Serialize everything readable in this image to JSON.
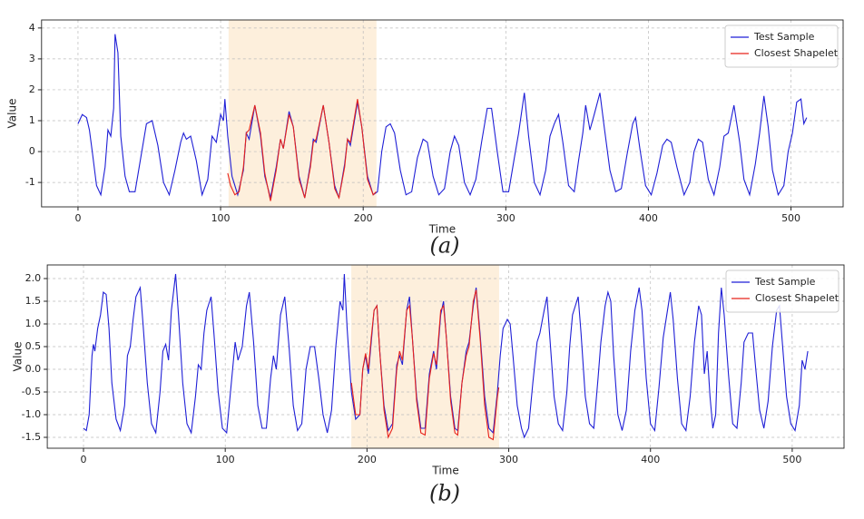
{
  "chart_data": [
    {
      "type": "line",
      "caption": "(a)",
      "xlabel": "Time",
      "ylabel": "Value",
      "grid": true,
      "legend": "upper right",
      "xlim": [
        -25.55,
        536.55
      ],
      "ylim": [
        -1.79,
        4.26
      ],
      "xticks": [
        0,
        100,
        200,
        300,
        400,
        500
      ],
      "yticks": [
        -1,
        0,
        1,
        2,
        3,
        4
      ],
      "span": [
        105.6,
        209.3
      ],
      "span_color": "#fdefdc",
      "series": [
        {
          "name": "Test Sample",
          "color": "#1f1fd6",
          "x": [
            0,
            3,
            6,
            8,
            10,
            13,
            16,
            19,
            21,
            23,
            25,
            26,
            28,
            30,
            33,
            36,
            40,
            44,
            48,
            52,
            56,
            60,
            64,
            68,
            72,
            74,
            76,
            79,
            83,
            87,
            91,
            94,
            97,
            100,
            102,
            103,
            105,
            108,
            112,
            116,
            118,
            120,
            124,
            128,
            131,
            135,
            139,
            142,
            144,
            148,
            151,
            155,
            159,
            163,
            165,
            167,
            172,
            176,
            180,
            183,
            187,
            189,
            191,
            196,
            199,
            203,
            207,
            210,
            213,
            216,
            219,
            222,
            226,
            230,
            234,
            238,
            242,
            245,
            249,
            253,
            257,
            261,
            264,
            267,
            271,
            275,
            279,
            283,
            287,
            290,
            294,
            298,
            302,
            306,
            309,
            313,
            316,
            320,
            324,
            328,
            331,
            334,
            337,
            340,
            344,
            348,
            351,
            354,
            356,
            359,
            362,
            366,
            369,
            373,
            377,
            381,
            385,
            389,
            391,
            394,
            398,
            402,
            406,
            410,
            413,
            416,
            420,
            425,
            429,
            432,
            435,
            438,
            442,
            446,
            450,
            453,
            456,
            460,
            464,
            467,
            471,
            475,
            478,
            481,
            484,
            487,
            491,
            495,
            498,
            501,
            504,
            507,
            509,
            511
          ],
          "values": [
            0.9,
            1.2,
            1.1,
            0.7,
            0,
            -1.1,
            -1.4,
            -0.5,
            0.7,
            0.5,
            1.4,
            3.8,
            3.2,
            0.5,
            -0.8,
            -1.3,
            -1.3,
            -0.2,
            0.9,
            1.0,
            0.2,
            -1.0,
            -1.4,
            -0.6,
            0.3,
            0.6,
            0.4,
            0.5,
            -0.3,
            -1.4,
            -0.9,
            0.5,
            0.3,
            1.2,
            1.0,
            1.7,
            0.5,
            -0.8,
            -1.4,
            -0.6,
            0.6,
            0.4,
            1.5,
            0.5,
            -0.8,
            -1.5,
            -0.5,
            0.4,
            0.1,
            1.3,
            0.8,
            -0.8,
            -1.5,
            -0.4,
            0.4,
            0.3,
            1.5,
            0.3,
            -1.1,
            -1.5,
            -0.4,
            0.4,
            0.2,
            1.6,
            0.8,
            -0.8,
            -1.4,
            -1.3,
            0.0,
            0.8,
            0.9,
            0.6,
            -0.6,
            -1.4,
            -1.3,
            -0.2,
            0.4,
            0.3,
            -0.8,
            -1.4,
            -1.2,
            0.0,
            0.5,
            0.2,
            -1.0,
            -1.4,
            -0.9,
            0.3,
            1.4,
            1.4,
            0.0,
            -1.3,
            -1.3,
            -0.2,
            0.6,
            1.9,
            0.5,
            -1.0,
            -1.4,
            -0.6,
            0.5,
            0.9,
            1.2,
            0.3,
            -1.1,
            -1.3,
            -0.3,
            0.6,
            1.5,
            0.7,
            1.2,
            1.9,
            0.8,
            -0.6,
            -1.3,
            -1.2,
            -0.1,
            0.9,
            1.1,
            0.1,
            -1.1,
            -1.4,
            -0.7,
            0.2,
            0.4,
            0.3,
            -0.5,
            -1.4,
            -1.0,
            0.0,
            0.4,
            0.3,
            -0.9,
            -1.4,
            -0.5,
            0.5,
            0.6,
            1.5,
            0.3,
            -0.9,
            -1.4,
            -0.4,
            0.6,
            1.8,
            0.8,
            -0.6,
            -1.4,
            -1.1,
            0.0,
            0.6,
            1.6,
            1.7,
            0.9,
            1.1
          ]
        },
        {
          "name": "Closest Shapelet",
          "color": "#e8231b",
          "x": [
            105,
            107,
            110,
            113,
            116,
            118,
            120,
            124,
            128,
            131,
            135,
            139,
            142,
            144,
            148,
            151,
            155,
            159,
            163,
            165,
            167,
            172,
            176,
            180,
            183,
            187,
            189,
            191,
            196,
            199,
            203,
            207,
            209
          ],
          "values": [
            -0.7,
            -1.1,
            -1.4,
            -1.3,
            -0.5,
            0.6,
            0.7,
            1.5,
            0.6,
            -0.7,
            -1.6,
            -0.6,
            0.4,
            0.1,
            1.2,
            0.8,
            -0.9,
            -1.5,
            -0.5,
            0.3,
            0.4,
            1.5,
            0.3,
            -1.2,
            -1.5,
            -0.5,
            0.4,
            0.3,
            1.7,
            0.8,
            -0.9,
            -1.4,
            -1.3
          ]
        }
      ]
    },
    {
      "type": "line",
      "caption": "(b)",
      "xlabel": "Time",
      "ylabel": "Value",
      "grid": true,
      "legend": "upper right",
      "xlim": [
        -25.55,
        536.55
      ],
      "ylim": [
        -1.74,
        2.3
      ],
      "xticks": [
        0,
        100,
        200,
        300,
        400,
        500
      ],
      "yticks": [
        -1.5,
        {
          "value": -1,
          "label": "-1.0"
        },
        -0.5,
        {
          "value": 0,
          "label": "0.0"
        },
        0.5,
        {
          "value": 1,
          "label": "1.0"
        },
        1.5,
        {
          "value": 2,
          "label": "2.0"
        }
      ],
      "span": [
        188.9,
        293.2
      ],
      "span_color": "#fdefdc",
      "series": [
        {
          "name": "Test Sample",
          "color": "#1f1fd6",
          "x": [
            0,
            2,
            4,
            6,
            7,
            8,
            10,
            12,
            14,
            16,
            18,
            20,
            23,
            26,
            29,
            31,
            33,
            35,
            37,
            40,
            42,
            45,
            48,
            51,
            54,
            56,
            58,
            60,
            62,
            65,
            67,
            70,
            73,
            76,
            79,
            81,
            83,
            85,
            87,
            90,
            92,
            95,
            98,
            101,
            104,
            107,
            109,
            112,
            115,
            117,
            120,
            123,
            126,
            129,
            132,
            134,
            136,
            139,
            142,
            145,
            148,
            151,
            154,
            157,
            160,
            163,
            166,
            169,
            172,
            175,
            178,
            181,
            183,
            184,
            186,
            189,
            192,
            195,
            197,
            199,
            201,
            203,
            205,
            207,
            209,
            212,
            215,
            218,
            221,
            223,
            225,
            228,
            230,
            232,
            235,
            238,
            241,
            244,
            247,
            249,
            252,
            254,
            256,
            259,
            262,
            264,
            267,
            270,
            272,
            275,
            277,
            280,
            283,
            286,
            289,
            292,
            294,
            296,
            299,
            301,
            303,
            306,
            309,
            311,
            314,
            317,
            320,
            322,
            325,
            327,
            329,
            332,
            335,
            338,
            341,
            343,
            345,
            347,
            349,
            351,
            354,
            357,
            360,
            363,
            365,
            368,
            370,
            372,
            374,
            377,
            380,
            383,
            386,
            389,
            392,
            394,
            397,
            400,
            403,
            406,
            409,
            412,
            414,
            416,
            419,
            422,
            425,
            428,
            431,
            434,
            436,
            438,
            440,
            442,
            444,
            446,
            448,
            450,
            452,
            455,
            458,
            461,
            464,
            466,
            469,
            472,
            474,
            477,
            480,
            483,
            486,
            489,
            491,
            493,
            496,
            499,
            502,
            505,
            507,
            509,
            511
          ],
          "values": [
            -1.3,
            -1.35,
            -1.0,
            0.3,
            0.55,
            0.4,
            0.9,
            1.2,
            1.7,
            1.65,
            0.9,
            -0.3,
            -1.1,
            -1.35,
            -0.8,
            0.3,
            0.5,
            1.1,
            1.6,
            1.8,
            1.0,
            -0.3,
            -1.2,
            -1.4,
            -0.5,
            0.4,
            0.55,
            0.2,
            1.3,
            2.1,
            1.2,
            -0.3,
            -1.2,
            -1.4,
            -0.6,
            0.1,
            0.0,
            0.8,
            1.3,
            1.6,
            0.8,
            -0.5,
            -1.3,
            -1.4,
            -0.4,
            0.6,
            0.2,
            0.5,
            1.4,
            1.7,
            0.6,
            -0.8,
            -1.3,
            -1.3,
            -0.2,
            0.3,
            0.0,
            1.2,
            1.6,
            0.5,
            -0.8,
            -1.35,
            -1.2,
            0.0,
            0.5,
            0.5,
            -0.2,
            -1.0,
            -1.4,
            -0.9,
            0.5,
            1.5,
            1.3,
            2.1,
            0.9,
            -0.5,
            -1.1,
            -1.0,
            0.0,
            0.3,
            -0.1,
            0.6,
            1.3,
            1.4,
            0.4,
            -0.8,
            -1.35,
            -1.2,
            0.1,
            0.3,
            0.1,
            1.3,
            1.6,
            0.7,
            -0.6,
            -1.3,
            -1.3,
            -0.1,
            0.4,
            0.0,
            1.2,
            1.5,
            0.7,
            -0.6,
            -1.3,
            -1.35,
            -0.3,
            0.4,
            0.6,
            1.4,
            1.8,
            0.7,
            -0.6,
            -1.3,
            -1.4,
            -0.5,
            0.3,
            0.9,
            1.1,
            1.0,
            0.3,
            -0.8,
            -1.3,
            -1.5,
            -1.3,
            -0.3,
            0.6,
            0.8,
            1.3,
            1.6,
            0.7,
            -0.6,
            -1.2,
            -1.35,
            -0.5,
            0.5,
            1.2,
            1.4,
            1.6,
            0.8,
            -0.6,
            -1.2,
            -1.3,
            -0.2,
            0.6,
            1.4,
            1.7,
            1.5,
            0.3,
            -1.0,
            -1.35,
            -0.9,
            0.4,
            1.3,
            1.8,
            1.3,
            -0.2,
            -1.2,
            -1.35,
            -0.4,
            0.7,
            1.3,
            1.7,
            1.1,
            -0.2,
            -1.2,
            -1.35,
            -0.6,
            0.6,
            1.4,
            1.2,
            -0.1,
            0.4,
            -0.6,
            -1.3,
            -1.0,
            0.8,
            1.8,
            1.2,
            -0.1,
            -1.2,
            -1.3,
            -0.3,
            0.6,
            0.8,
            0.8,
            0.1,
            -0.9,
            -1.3,
            -0.7,
            0.5,
            1.3,
            1.4,
            0.6,
            -0.6,
            -1.2,
            -1.35,
            -0.8,
            0.2,
            0.0,
            0.4
          ]
        },
        {
          "name": "Closest Shapelet",
          "color": "#e8231b",
          "x": [
            189,
            192,
            195,
            197,
            199,
            201,
            203,
            205,
            207,
            209,
            212,
            215,
            218,
            221,
            223,
            225,
            228,
            230,
            232,
            235,
            238,
            241,
            244,
            247,
            249,
            252,
            254,
            256,
            259,
            262,
            264,
            267,
            270,
            272,
            275,
            277,
            280,
            283,
            286,
            289,
            292,
            293
          ],
          "values": [
            -0.3,
            -1.0,
            -1.0,
            0.0,
            0.35,
            0.0,
            0.7,
            1.3,
            1.4,
            0.4,
            -0.9,
            -1.5,
            -1.3,
            0.0,
            0.4,
            0.2,
            1.3,
            1.4,
            0.7,
            -0.7,
            -1.4,
            -1.45,
            -0.2,
            0.35,
            0.1,
            1.3,
            1.4,
            0.7,
            -0.7,
            -1.4,
            -1.45,
            -0.3,
            0.3,
            0.5,
            1.5,
            1.75,
            0.6,
            -0.8,
            -1.5,
            -1.55,
            -0.6,
            -0.4
          ]
        }
      ]
    }
  ]
}
